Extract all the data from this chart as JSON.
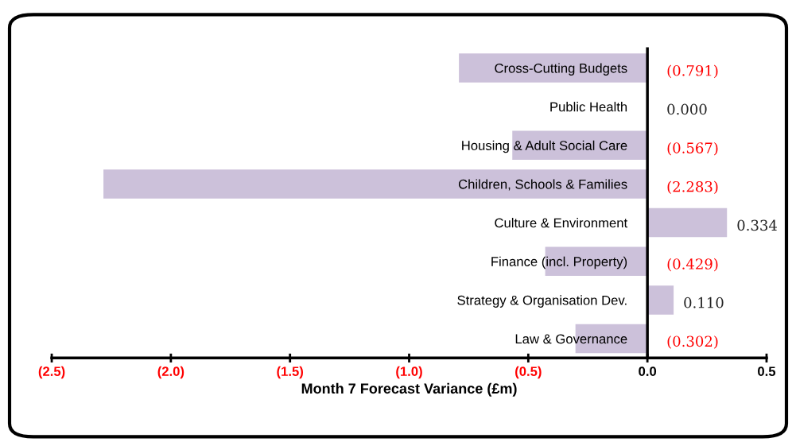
{
  "chart_data": {
    "type": "bar",
    "orientation": "horizontal",
    "xlabel": "Month 7 Forecast Variance (£m)",
    "categories": [
      "Cross-Cutting Budgets",
      "Public Health",
      "Housing & Adult Social Care",
      "Children, Schools & Families",
      "Culture & Environment",
      "Finance (incl. Property)",
      "Strategy & Organisation Dev.",
      "Law & Governance"
    ],
    "values": [
      -0.791,
      0.0,
      -0.567,
      -2.283,
      0.334,
      -0.429,
      0.11,
      -0.302
    ],
    "value_labels": [
      "(0.791)",
      "0.000",
      "(0.567)",
      "(2.283)",
      "0.334",
      "(0.429)",
      "0.110",
      "(0.302)"
    ],
    "color": "#ccc1da",
    "xlim": [
      -2.5,
      0.5
    ],
    "xticks": [
      {
        "value": -2.5,
        "label": "(2.5)"
      },
      {
        "value": -2.0,
        "label": "(2.0)"
      },
      {
        "value": -1.5,
        "label": "(1.5)"
      },
      {
        "value": -1.0,
        "label": "(1.0)"
      },
      {
        "value": -0.5,
        "label": "(0.5)"
      },
      {
        "value": 0,
        "label": "0.0"
      },
      {
        "value": 0.5,
        "label": "0.5"
      }
    ],
    "grid": false,
    "legend": false
  }
}
